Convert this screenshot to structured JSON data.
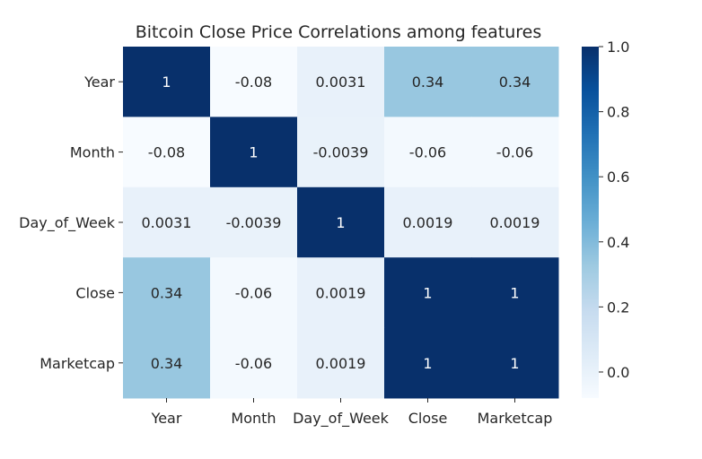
{
  "chart_data": {
    "type": "heatmap",
    "title": "Bitcoin Close Price Correlations among features",
    "rows": [
      "Year",
      "Month",
      "Day_of_Week",
      "Close",
      "Marketcap"
    ],
    "columns": [
      "Year",
      "Month",
      "Day_of_Week",
      "Close",
      "Marketcap"
    ],
    "values": [
      [
        1,
        -0.08,
        0.0031,
        0.34,
        0.34
      ],
      [
        -0.08,
        1,
        -0.0039,
        -0.06,
        -0.06
      ],
      [
        0.0031,
        -0.0039,
        1,
        0.0019,
        0.0019
      ],
      [
        0.34,
        -0.06,
        0.0019,
        1,
        1
      ],
      [
        0.34,
        -0.06,
        0.0019,
        1,
        1
      ]
    ],
    "cell_labels": [
      [
        "1",
        "-0.08",
        "0.0031",
        "0.34",
        "0.34"
      ],
      [
        "-0.08",
        "1",
        "-0.0039",
        "-0.06",
        "-0.06"
      ],
      [
        "0.0031",
        "-0.0039",
        "1",
        "0.0019",
        "0.0019"
      ],
      [
        "0.34",
        "-0.06",
        "0.0019",
        "1",
        "1"
      ],
      [
        "0.34",
        "-0.06",
        "0.0019",
        "1",
        "1"
      ]
    ],
    "colormap": "Blues",
    "colors": {
      "low": "#f7fbff",
      "high": "#08306b",
      "text_dark": "#262626",
      "text_light": "#ffffff"
    },
    "colorbar": {
      "range": [
        -0.08,
        1.0
      ],
      "ticks": [
        0.0,
        0.2,
        0.4,
        0.6,
        0.8,
        1.0
      ],
      "tick_labels": [
        "0.0",
        "0.2",
        "0.4",
        "0.6",
        "0.8",
        "1.0"
      ]
    },
    "grid": false,
    "legend": "colorbar-right"
  }
}
